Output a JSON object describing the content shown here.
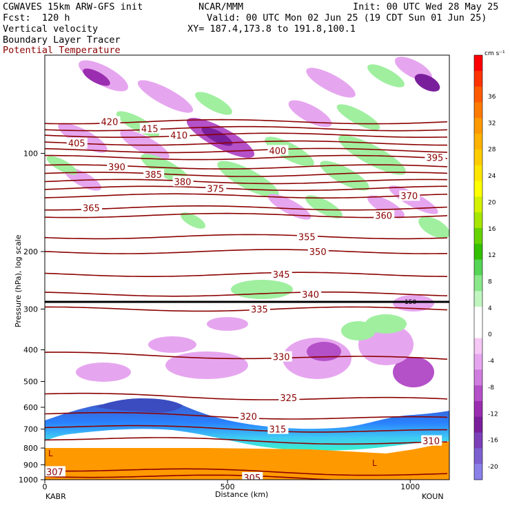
{
  "header": {
    "line1_left": "CGWAVES 15km ARW-GFS init",
    "line1_mid": "NCAR/MMM",
    "line1_right": "Init: 00 UTC Wed 28 May 25",
    "line2_left": "Fcst:  120 h",
    "line2_right": "Valid: 00 UTC Mon 02 Jun 25 (19 CDT Sun 01 Jun 25)",
    "line3_left": "Vertical velocity",
    "line3_right": "XY= 187.4,173.8 to 191.8,100.1",
    "line4_left": "Boundary Layer Tracer",
    "line5_left": "Potential Temperature"
  },
  "colors": {
    "theta": "#8b0000",
    "tropopause": "#000000",
    "terrain": "#ff9900",
    "tracer": [
      "#3b4cc0",
      "#1e7bff",
      "#35c7f2",
      "#2ef0c8"
    ],
    "up": "#9fef9f",
    "down": "#e6a6ef"
  },
  "chart_data": {
    "type": "heatmap",
    "title": "",
    "xlabel": "Distance (km)",
    "ylabel": "Pressure (hPa), log scale",
    "x_ticks": [
      0,
      500,
      1000
    ],
    "xlim": [
      0,
      1107
    ],
    "left_station": "KABR",
    "right_station": "KOUN",
    "y_ticks": [
      100,
      200,
      300,
      400,
      500,
      600,
      700,
      800,
      900,
      1000
    ],
    "y_scale": "log",
    "ylim": [
      1000,
      50
    ],
    "colorbar": {
      "units": "cm s⁻¹",
      "ticks": [
        36,
        32,
        28,
        24,
        20,
        16,
        12,
        8,
        4,
        0,
        -4,
        -8,
        -12,
        -16,
        -20
      ],
      "colors": [
        "#ff0000",
        "#ff3300",
        "#ff5a00",
        "#ff7a00",
        "#ff9900",
        "#ffb300",
        "#ffcc00",
        "#ffe600",
        "#ffff00",
        "#d4f200",
        "#a6e600",
        "#66d200",
        "#33c000",
        "#55d455",
        "#8ae88a",
        "#c0f5c0",
        "#ffffff",
        "#ffffff",
        "#f5c8f5",
        "#e6a6ef",
        "#d07de0",
        "#b450c8",
        "#9a2db0",
        "#7a1f9c",
        "#7c3fb8",
        "#7d60d0",
        "#8a80e8"
      ]
    },
    "theta_contours": [
      {
        "value": 305,
        "p": 985,
        "label_x": 540
      },
      {
        "value": 307,
        "p": 945,
        "label_x": 0
      },
      {
        "value": 310,
        "p": 760,
        "label_x": 1030
      },
      {
        "value": 315,
        "p": 700,
        "label_x": 610
      },
      {
        "value": 320,
        "p": 640,
        "label_x": 530
      },
      {
        "value": 325,
        "p": 560,
        "label_x": 640
      },
      {
        "value": 330,
        "p": 420,
        "label_x": 620
      },
      {
        "value": 335,
        "p": 300,
        "label_x": 560
      },
      {
        "value": 340,
        "p": 270,
        "label_x": 700
      },
      {
        "value": 345,
        "p": 235,
        "label_x": 620
      },
      {
        "value": 350,
        "p": 200,
        "label_x": 720
      },
      {
        "value": 355,
        "p": 180,
        "label_x": 690
      },
      {
        "value": 360,
        "p": 155,
        "label_x": 900
      },
      {
        "value": 365,
        "p": 147,
        "label_x": 100
      },
      {
        "value": 370,
        "p": 135,
        "label_x": 970
      },
      {
        "value": 375,
        "p": 128,
        "label_x": 440
      },
      {
        "value": 380,
        "p": 122,
        "label_x": 350
      },
      {
        "value": 385,
        "p": 116,
        "label_x": 270
      },
      {
        "value": 390,
        "p": 110,
        "label_x": 170
      },
      {
        "value": 395,
        "p": 103,
        "label_x": 1040
      },
      {
        "value": 400,
        "p": 98,
        "label_x": 610
      },
      {
        "value": 405,
        "p": 93,
        "label_x": 60
      },
      {
        "value": 410,
        "p": 88,
        "label_x": 340
      },
      {
        "value": 415,
        "p": 84,
        "label_x": 260
      },
      {
        "value": 420,
        "p": 80,
        "label_x": 150
      }
    ],
    "tropopause_label": "150",
    "low_labels": [
      "L",
      "L"
    ]
  }
}
